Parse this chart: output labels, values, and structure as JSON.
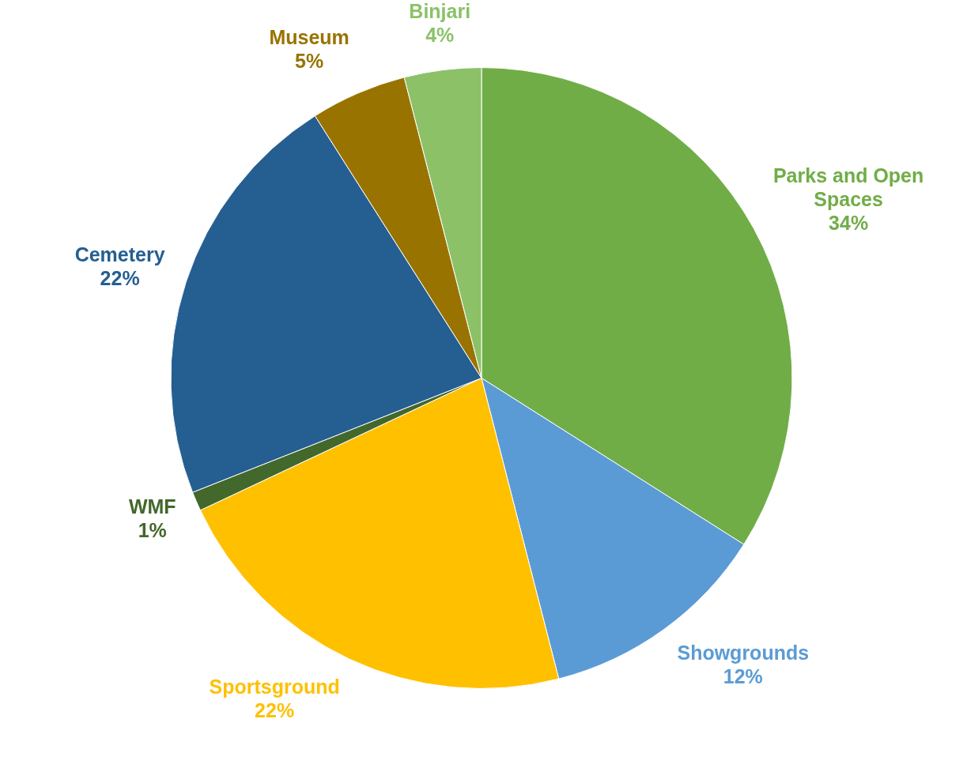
{
  "chart_data": {
    "type": "pie",
    "categories": [
      "Parks and Open Spaces",
      "Showgrounds",
      "Sportsground",
      "WMF",
      "Cemetery",
      "Museum",
      "Binjari"
    ],
    "values": [
      34,
      12,
      22,
      1,
      22,
      5,
      4
    ],
    "value_labels": [
      "34%",
      "12%",
      "22%",
      "1%",
      "22%",
      "5%",
      "4%"
    ],
    "colors": [
      "#70ad47",
      "#5b9bd5",
      "#ffc000",
      "#43682b",
      "#255e91",
      "#997300",
      "#8cc168"
    ],
    "legend": false
  }
}
